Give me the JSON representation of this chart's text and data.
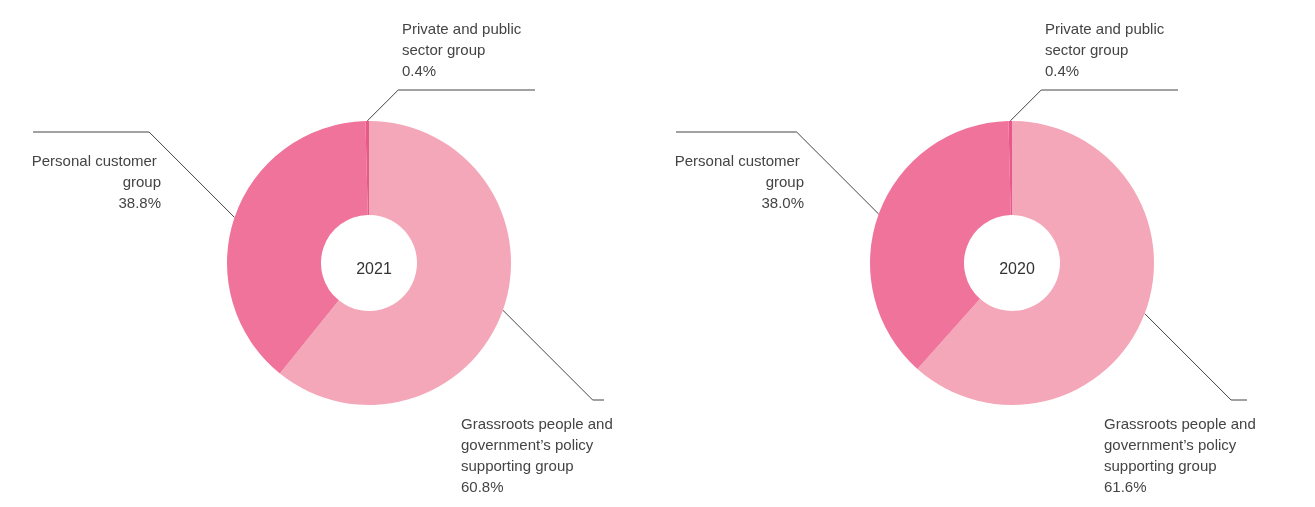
{
  "chart_data": [
    {
      "type": "donut",
      "title": "2021",
      "categories": [
        "Grassroots people and government’s policy supporting group",
        "Personal customer group",
        "Private and public sector group"
      ],
      "values": [
        60.8,
        38.8,
        0.4
      ],
      "value_labels": [
        "60.8%",
        "38.8%",
        "0.4%"
      ],
      "colors": [
        "#f4a7b9",
        "#ef739b",
        "#e9588a"
      ],
      "legend": false
    },
    {
      "type": "donut",
      "title": "2020",
      "categories": [
        "Grassroots people and government’s policy supporting group",
        "Personal customer group",
        "Private and public sector group"
      ],
      "values": [
        61.6,
        38.0,
        0.4
      ],
      "value_labels": [
        "61.6%",
        "38.0%",
        "0.4%"
      ],
      "colors": [
        "#f4a7b9",
        "#ef739b",
        "#e9588a"
      ],
      "legend": false
    }
  ]
}
